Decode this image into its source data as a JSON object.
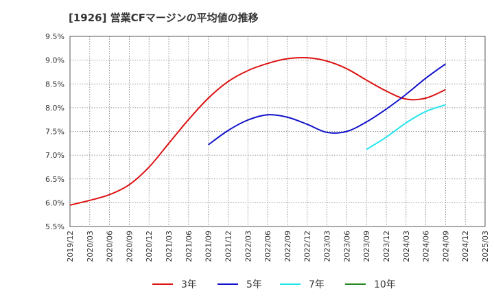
{
  "chart_data": {
    "type": "line",
    "title": "[1926]  営業CFマージンの平均値の推移",
    "xlabel": "",
    "ylabel": "",
    "x": [
      "2019/12",
      "2020/03",
      "2020/06",
      "2020/09",
      "2020/12",
      "2021/03",
      "2021/06",
      "2021/09",
      "2021/12",
      "2022/03",
      "2022/06",
      "2022/09",
      "2022/12",
      "2023/03",
      "2023/06",
      "2023/09",
      "2023/12",
      "2024/03",
      "2024/06",
      "2024/09",
      "2024/12",
      "2025/03"
    ],
    "y_ticks": [
      "5.5%",
      "6.0%",
      "6.5%",
      "7.0%",
      "7.5%",
      "8.0%",
      "8.5%",
      "9.0%",
      "9.5%"
    ],
    "ylim": [
      5.5,
      9.5
    ],
    "grid": true,
    "legend_position": "bottom",
    "series": [
      {
        "name": "3年",
        "color": "#dd1111",
        "values": [
          5.95,
          6.05,
          6.17,
          6.38,
          6.75,
          7.25,
          7.75,
          8.2,
          8.55,
          8.78,
          8.93,
          9.03,
          9.05,
          8.98,
          8.82,
          8.58,
          8.35,
          8.18,
          8.2,
          8.38,
          null,
          null
        ]
      },
      {
        "name": "5年",
        "color": "#1111cc",
        "values": [
          null,
          null,
          null,
          null,
          null,
          null,
          null,
          7.22,
          7.52,
          7.74,
          7.85,
          7.8,
          7.65,
          7.48,
          7.5,
          7.7,
          7.97,
          8.28,
          8.62,
          8.92,
          null,
          null
        ]
      },
      {
        "name": "7年",
        "color": "#22e5ee",
        "values": [
          null,
          null,
          null,
          null,
          null,
          null,
          null,
          null,
          null,
          null,
          null,
          null,
          null,
          null,
          null,
          7.12,
          7.38,
          7.68,
          7.92,
          8.06,
          null,
          null
        ]
      },
      {
        "name": "10年",
        "color": "#228822",
        "values": [
          null,
          null,
          null,
          null,
          null,
          null,
          null,
          null,
          null,
          null,
          null,
          null,
          null,
          null,
          null,
          null,
          null,
          null,
          null,
          null,
          null,
          null
        ]
      }
    ]
  }
}
